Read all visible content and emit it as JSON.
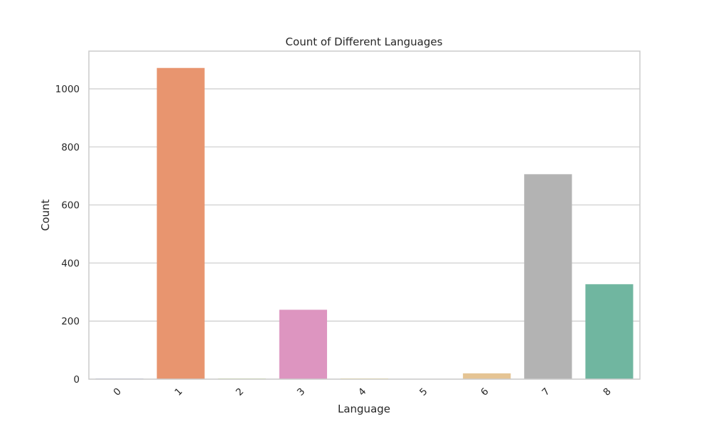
{
  "chart_data": {
    "type": "bar",
    "title": "Count of Different Languages",
    "xlabel": "Language",
    "ylabel": "Count",
    "categories": [
      "0",
      "1",
      "2",
      "3",
      "4",
      "5",
      "6",
      "7",
      "8"
    ],
    "values": [
      2,
      1072,
      2,
      239,
      2,
      1,
      20,
      706,
      327
    ],
    "colors": [
      "#8da0cb",
      "#e8956f",
      "#a6d854",
      "#dd95c0",
      "#ffd92f",
      "#66c2a5",
      "#e5c494",
      "#b3b3b3",
      "#70b6a0"
    ],
    "ylim": [
      0,
      1130
    ],
    "yticks": [
      0,
      200,
      400,
      600,
      800,
      1000
    ],
    "grid": "horizontal",
    "xtick_rotation": -45
  }
}
